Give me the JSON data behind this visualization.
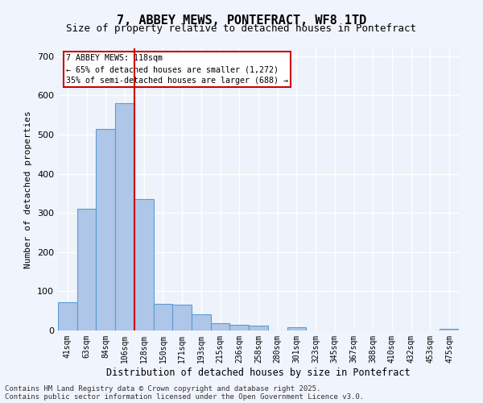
{
  "title_line1": "7, ABBEY MEWS, PONTEFRACT, WF8 1TD",
  "title_line2": "Size of property relative to detached houses in Pontefract",
  "xlabel": "Distribution of detached houses by size in Pontefract",
  "ylabel": "Number of detached properties",
  "categories": [
    "41sqm",
    "63sqm",
    "84sqm",
    "106sqm",
    "128sqm",
    "150sqm",
    "171sqm",
    "193sqm",
    "215sqm",
    "236sqm",
    "258sqm",
    "280sqm",
    "301sqm",
    "323sqm",
    "345sqm",
    "367sqm",
    "388sqm",
    "410sqm",
    "432sqm",
    "453sqm",
    "475sqm"
  ],
  "values": [
    72,
    310,
    515,
    580,
    335,
    68,
    65,
    42,
    18,
    15,
    12,
    0,
    8,
    0,
    0,
    0,
    0,
    0,
    0,
    0,
    5
  ],
  "bar_color": "#aec6e8",
  "bar_edge_color": "#5b9bd5",
  "ref_line_x": 3.5,
  "ref_line_label": "7 ABBEY MEWS: 118sqm",
  "annotation_line1": "← 65% of detached houses are smaller (1,272)",
  "annotation_line2": "35% of semi-detached houses are larger (688) →",
  "annotation_box_color": "#ffffff",
  "annotation_box_edge": "#cc0000",
  "ref_line_color": "#cc0000",
  "ylim": [
    0,
    720
  ],
  "yticks": [
    0,
    100,
    200,
    300,
    400,
    500,
    600,
    700
  ],
  "footer_line1": "Contains HM Land Registry data © Crown copyright and database right 2025.",
  "footer_line2": "Contains public sector information licensed under the Open Government Licence v3.0.",
  "bg_color": "#eef3fb",
  "plot_bg_color": "#eef3fb",
  "grid_color": "#ffffff"
}
